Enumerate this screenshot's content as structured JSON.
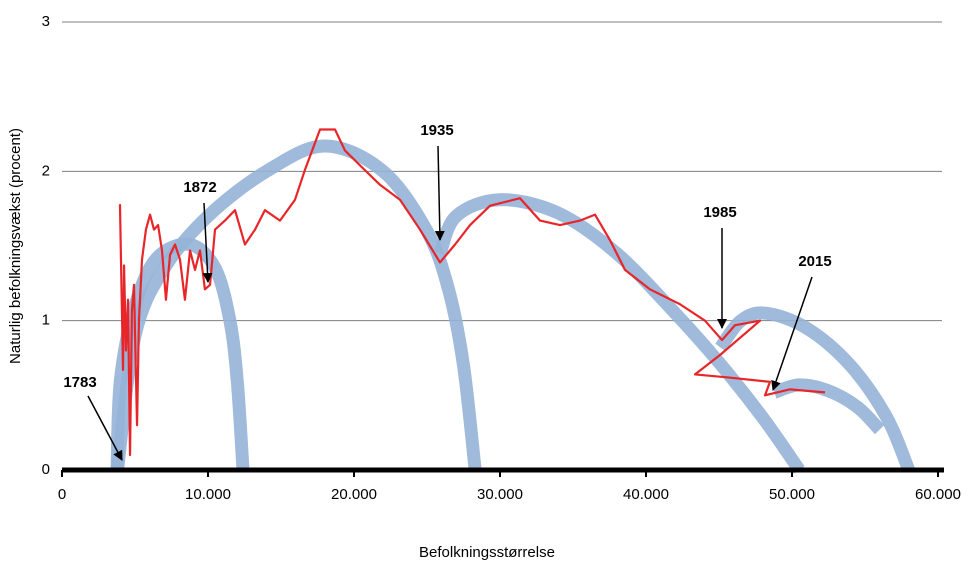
{
  "chart_data": {
    "type": "line",
    "xlabel": "Befolkningsstørrelse",
    "ylabel": "Naturlig befolkningsvækst (procent)",
    "xlim": [
      0,
      60000
    ],
    "ylim": [
      0,
      3
    ],
    "xticks": [
      0,
      {
        "value": 10000,
        "label": "10.000"
      },
      {
        "value": 20000,
        "label": "20.000"
      },
      {
        "value": 30000,
        "label": "30.000"
      },
      {
        "value": 40000,
        "label": "40.000"
      },
      {
        "value": 50000,
        "label": "50.000"
      },
      {
        "value": 60000,
        "label": "60.000"
      }
    ],
    "yticks": [
      0,
      1,
      2,
      3
    ],
    "grid": true,
    "annotations": [
      {
        "text": "1783"
      },
      {
        "text": "1872"
      },
      {
        "text": "1935"
      },
      {
        "text": "1985"
      },
      {
        "text": "2015"
      }
    ],
    "fits": [
      {
        "color": "#95b3d7",
        "x": [
          3770,
          4000,
          5000,
          6500,
          8770,
          10500,
          11500,
          12000,
          12400
        ],
        "values": [
          0,
          0.6,
          1.1,
          1.42,
          1.51,
          1.35,
          1.0,
          0.6,
          0
        ]
      },
      {
        "color": "#95b3d7",
        "x": [
          3800,
          5000,
          7000,
          10000,
          14000,
          18000,
          22000,
          25000,
          26500,
          27500,
          28300
        ],
        "values": [
          0,
          0.9,
          1.35,
          1.7,
          2.0,
          2.17,
          2.0,
          1.6,
          1.2,
          0.7,
          0
        ]
      },
      {
        "color": "#95b3d7",
        "x": [
          25900,
          27000,
          30000,
          34000,
          38000,
          42000,
          45000,
          48000,
          50500
        ],
        "values": [
          1.45,
          1.7,
          1.81,
          1.72,
          1.45,
          1.05,
          0.72,
          0.35,
          0
        ]
      },
      {
        "color": "#95b3d7",
        "x": [
          45100,
          46500,
          48200,
          51000,
          54000,
          56500,
          58000
        ],
        "values": [
          0.82,
          1.0,
          1.05,
          0.95,
          0.7,
          0.35,
          0
        ]
      },
      {
        "color": "#95b3d7",
        "x": [
          48800,
          50500,
          52500,
          54500,
          56000
        ],
        "values": [
          0.52,
          0.57,
          0.53,
          0.42,
          0.27
        ]
      }
    ],
    "series": [
      {
        "color": "#e8262a",
        "x": [
          3970,
          4180,
          4250,
          4380,
          4520,
          4660,
          4790,
          4930,
          5140,
          5270,
          5480,
          5750,
          6030,
          6300,
          6580,
          6850,
          7120,
          7400,
          7740,
          8080,
          8420,
          8770,
          9110,
          9450,
          9790,
          10140,
          10480,
          11160,
          11850,
          12530,
          13220,
          13900,
          14930,
          15960,
          16640,
          17670,
          18700,
          19380,
          20410,
          21780,
          23150,
          24520,
          25890,
          26920,
          27950,
          29320,
          31370,
          32740,
          34110,
          35480,
          36510,
          37530,
          38560,
          40270,
          42330,
          44040,
          45210,
          46100,
          47810,
          45070,
          43360,
          45620,
          48490,
          48150,
          49860,
          52260
        ],
        "values": [
          1.78,
          0.67,
          1.37,
          0.8,
          1.14,
          0.1,
          1.07,
          1.24,
          0.3,
          1.0,
          1.41,
          1.61,
          1.71,
          1.61,
          1.64,
          1.47,
          1.14,
          1.44,
          1.51,
          1.41,
          1.14,
          1.47,
          1.34,
          1.47,
          1.21,
          1.24,
          1.61,
          1.67,
          1.74,
          1.51,
          1.61,
          1.74,
          1.67,
          1.81,
          2.01,
          2.28,
          2.28,
          2.14,
          2.04,
          1.91,
          1.81,
          1.61,
          1.39,
          1.51,
          1.64,
          1.77,
          1.82,
          1.67,
          1.64,
          1.67,
          1.71,
          1.54,
          1.34,
          1.21,
          1.11,
          1.0,
          0.87,
          0.97,
          1.0,
          0.77,
          0.64,
          0.62,
          0.59,
          0.5,
          0.54,
          0.52
        ]
      }
    ]
  }
}
